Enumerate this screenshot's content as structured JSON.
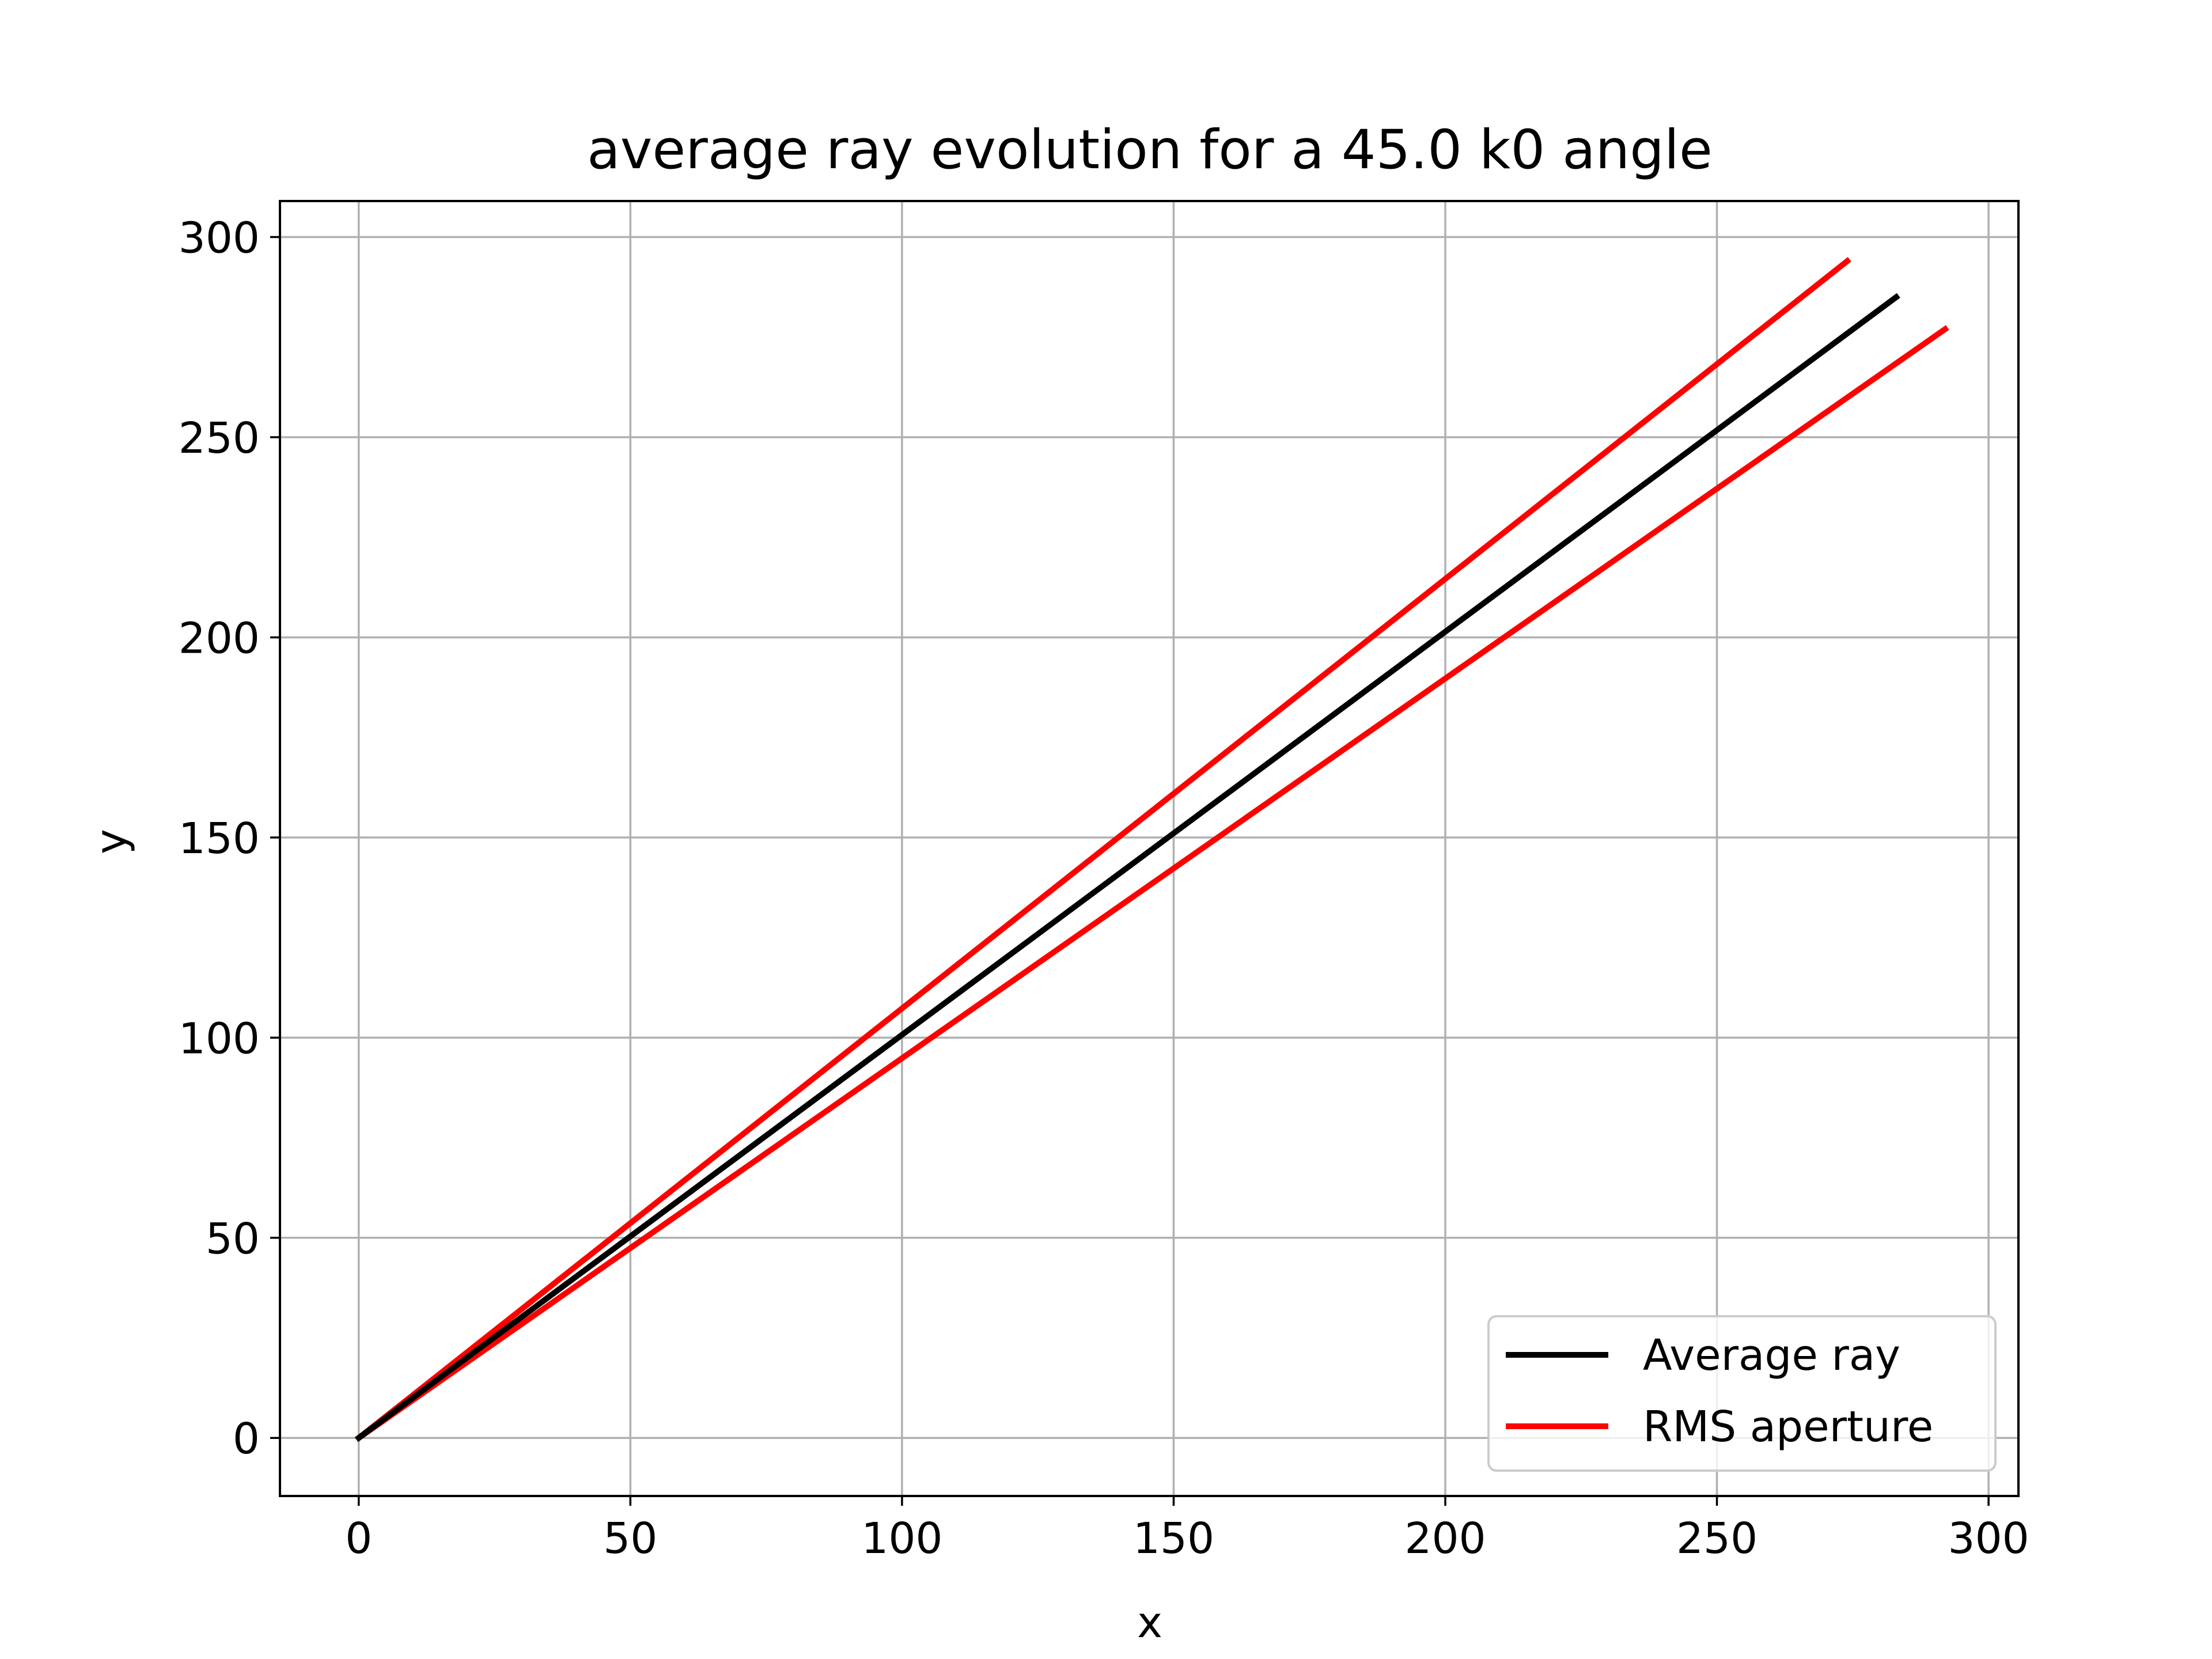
{
  "chart_data": {
    "type": "line",
    "title": "average ray evolution for a 45.0 k0 angle",
    "xlabel": "x",
    "ylabel": "y",
    "xlim": [
      -14.5,
      305.5
    ],
    "ylim": [
      -14.5,
      309
    ],
    "xticks": [
      0,
      50,
      100,
      150,
      200,
      250,
      300
    ],
    "yticks": [
      0,
      50,
      100,
      150,
      200,
      250,
      300
    ],
    "grid": true,
    "legend_position": "lower right",
    "series": [
      {
        "name": "Average ray",
        "color": "#000000",
        "x": [
          0,
          283
        ],
        "y": [
          0,
          285
        ]
      },
      {
        "name": "RMS aperture",
        "color": "#ff0000",
        "x": [
          0,
          274
        ],
        "y": [
          0,
          294
        ]
      },
      {
        "name": "",
        "color": "#ff0000",
        "x": [
          0,
          292
        ],
        "y": [
          0,
          277
        ]
      }
    ]
  }
}
